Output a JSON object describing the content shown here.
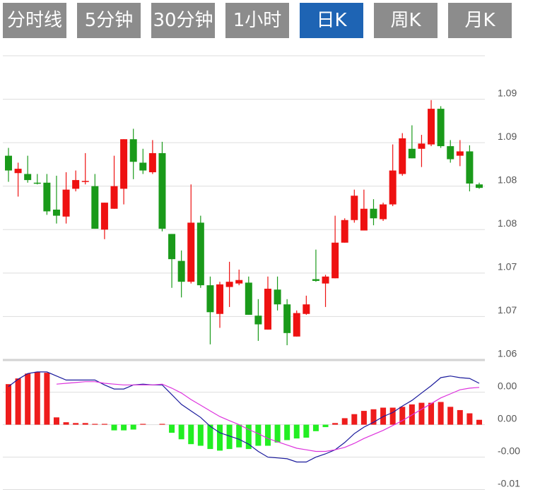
{
  "tabs": [
    "分时线",
    "5分钟",
    "30分钟",
    "1小时",
    "日K",
    "周K",
    "月K"
  ],
  "active_tab": 4,
  "chart_data": [
    {
      "type": "candlestick",
      "up_color": "#ee1111",
      "down_color": "#1a9a1a",
      "open": [
        1.0835,
        1.0815,
        1.0814,
        1.0804,
        1.0804,
        1.0773,
        1.0765,
        1.0797,
        1.0805,
        1.08,
        1.075,
        1.0774,
        1.0797,
        1.0854,
        1.0827,
        1.0816,
        1.0838,
        1.0745,
        1.0714,
        1.069,
        1.0758,
        1.0686,
        1.0653,
        1.0684,
        1.0688,
        1.0689,
        1.0651,
        1.0635,
        1.0681,
        1.0664,
        1.0627,
        1.0653,
        1.0693,
        1.0688,
        1.0694,
        1.0735,
        1.0761,
        1.0749,
        1.0774,
        1.0762,
        1.0779,
        1.0814,
        1.0843,
        1.0843,
        1.0848,
        1.0889,
        1.0846,
        1.0835,
        1.084,
        1.0802
      ],
      "high": [
        1.0844,
        1.0827,
        1.0835,
        1.0814,
        1.0814,
        1.0812,
        1.0816,
        1.0818,
        1.0838,
        1.0814,
        1.0781,
        1.0835,
        1.0854,
        1.0866,
        1.0843,
        1.0853,
        1.0851,
        1.0745,
        1.0726,
        1.0802,
        1.0766,
        1.0696,
        1.069,
        1.0713,
        1.0704,
        1.0696,
        1.067,
        1.0696,
        1.0696,
        1.067,
        1.0657,
        1.0674,
        1.0727,
        1.0698,
        1.0766,
        1.0763,
        1.0796,
        1.0796,
        1.0785,
        1.0781,
        1.0848,
        1.0861,
        1.087,
        1.0859,
        1.0899,
        1.0892,
        1.0853,
        1.0853,
        1.0847,
        1.0804
      ],
      "low": [
        1.0805,
        1.0788,
        1.0804,
        1.0802,
        1.0767,
        1.0757,
        1.0757,
        1.0794,
        1.0802,
        1.0751,
        1.0739,
        1.0774,
        1.0779,
        1.0808,
        1.0814,
        1.0814,
        1.0748,
        1.0683,
        1.0672,
        1.0688,
        1.0683,
        1.0618,
        1.0637,
        1.0661,
        1.0686,
        1.0652,
        1.0622,
        1.0635,
        1.0657,
        1.0617,
        1.0627,
        1.0652,
        1.069,
        1.0661,
        1.0694,
        1.0735,
        1.0758,
        1.0749,
        1.0755,
        1.076,
        1.0777,
        1.0812,
        1.0832,
        1.0822,
        1.0846,
        1.0844,
        1.0827,
        1.0823,
        1.0794,
        1.0797
      ],
      "close": [
        1.0818,
        1.082,
        1.0807,
        1.0803,
        1.0771,
        1.0766,
        1.0796,
        1.0807,
        1.0806,
        1.0751,
        1.0781,
        1.08,
        1.0854,
        1.0828,
        1.0818,
        1.0838,
        1.0751,
        1.0716,
        1.069,
        1.0758,
        1.0686,
        1.0655,
        1.0687,
        1.069,
        1.0692,
        1.0652,
        1.0641,
        1.0682,
        1.0664,
        1.0631,
        1.0654,
        1.0664,
        1.0691,
        1.0696,
        1.0735,
        1.0761,
        1.0789,
        1.0774,
        1.0763,
        1.0779,
        1.0818,
        1.0855,
        1.0832,
        1.0849,
        1.0889,
        1.0846,
        1.0831,
        1.084,
        1.0803,
        1.0798
      ],
      "ylim": [
        1.06,
        1.095
      ],
      "yticks": [
        1.09,
        {
          "value": 1.085,
          "label": "1.09"
        },
        1.08,
        {
          "value": 1.075,
          "label": "1.08"
        },
        1.07,
        {
          "value": 1.065,
          "label": "1.07"
        },
        1.06
      ],
      "grid": true
    },
    {
      "type": "macd",
      "up_color": "#ee1c1c",
      "down_color": "#22ee22",
      "histogram": [
        0.005,
        0.0057,
        0.0063,
        0.0065,
        0.0064,
        0.0009,
        0.0003,
        0.0002,
        0.0002,
        0.0001,
        0.0001,
        -0.0007,
        -0.0007,
        -0.0006,
        0.0001,
        0,
        0.0001,
        -0.001,
        -0.0018,
        -0.0024,
        -0.0026,
        -0.003,
        -0.0032,
        -0.003,
        -0.0028,
        -0.003,
        -0.0026,
        -0.0026,
        -0.0022,
        -0.0019,
        -0.0017,
        -0.0016,
        -0.0008,
        -0.0003,
        0.0002,
        0.0008,
        0.0013,
        0.0017,
        0.0019,
        0.0021,
        0.0021,
        0.0022,
        0.0025,
        0.0027,
        0.0027,
        0.0028,
        0.0022,
        0.0018,
        0.0014,
        0.0006
      ],
      "series": [
        {
          "color": "#1a1a9c",
          "values": [
            0.0047,
            0.0056,
            0.0063,
            0.0065,
            0.0065,
            0.006,
            0.0055,
            0.0055,
            0.0055,
            0.0055,
            0.0049,
            0.0044,
            0.0044,
            0.0049,
            0.005,
            0.0049,
            0.0049,
            0.0037,
            0.0025,
            0.0017,
            0.0009,
            -0.0002,
            -0.001,
            -0.0014,
            -0.0018,
            -0.0024,
            -0.0033,
            -0.004,
            -0.0041,
            -0.0042,
            -0.0046,
            -0.0046,
            -0.004,
            -0.0036,
            -0.0031,
            -0.0022,
            -0.0011,
            -0.0003,
            0.0003,
            0.001,
            0.0015,
            0.0023,
            0.003,
            0.0039,
            0.0048,
            0.0058,
            0.006,
            0.0058,
            0.0057,
            0.0051
          ]
        },
        {
          "color": "#dd33dd",
          "values": [
            null,
            null,
            null,
            null,
            null,
            0.005,
            0.0051,
            0.0052,
            0.0053,
            0.0053,
            0.0051,
            0.005,
            0.0049,
            0.0049,
            0.0049,
            0.0049,
            0.005,
            0.0045,
            0.0039,
            0.0031,
            0.0024,
            0.0017,
            0.001,
            0.0005,
            0.0,
            -0.0006,
            -0.0011,
            -0.0017,
            -0.0021,
            -0.0025,
            -0.0029,
            -0.0031,
            -0.0033,
            -0.0033,
            -0.0031,
            -0.0028,
            -0.0023,
            -0.0017,
            -0.0012,
            -0.0007,
            -0.0001,
            0.0005,
            0.0012,
            0.0019,
            0.0026,
            0.0033,
            0.0038,
            0.0043,
            0.0045,
            0.0046
          ]
        }
      ],
      "ylim": [
        -0.0083,
        0.0078
      ],
      "yticks": [
        {
          "value": 0.004,
          "label": "0.00"
        },
        {
          "value": 0,
          "label": "0.00"
        },
        {
          "value": -0.004,
          "label": "-0.00"
        },
        {
          "value": -0.008,
          "label": "-0.01"
        }
      ],
      "grid": true
    }
  ]
}
